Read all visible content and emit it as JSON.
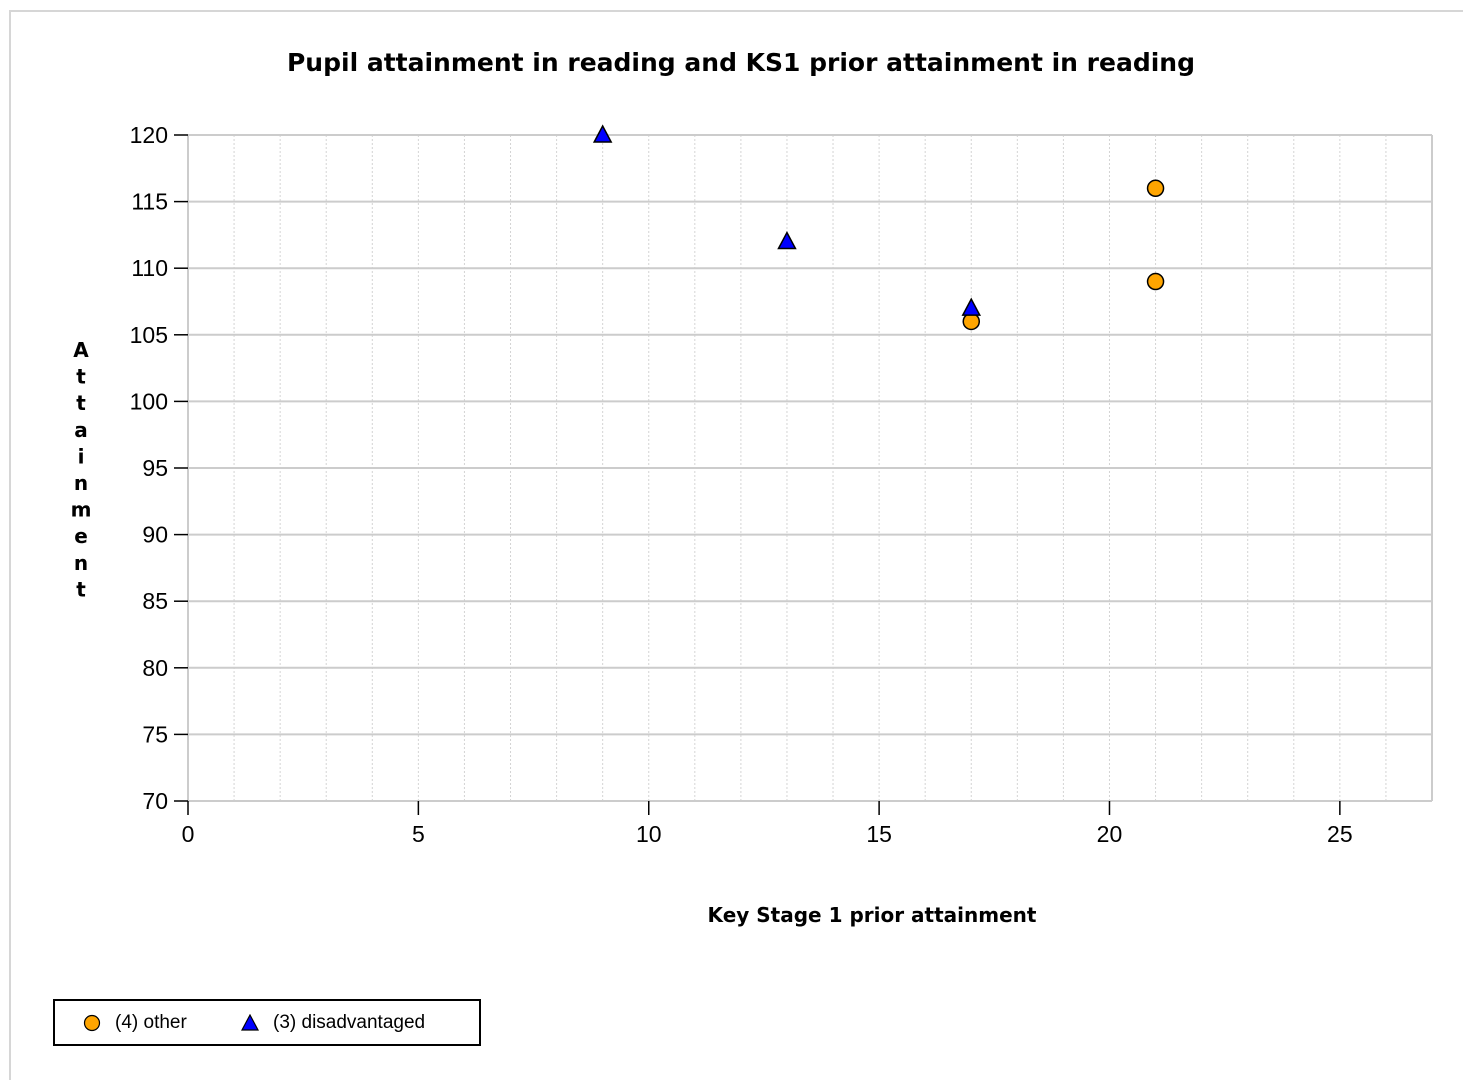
{
  "chart_data": {
    "type": "scatter",
    "title": "Pupil attainment in reading and KS1 prior attainment in reading",
    "xlabel": "Key Stage 1 prior attainment",
    "ylabel": "Attainment",
    "xlim": [
      0,
      27
    ],
    "ylim": [
      70,
      120
    ],
    "x_ticks": [
      "0",
      "5",
      "10",
      "15",
      "20",
      "25"
    ],
    "y_ticks": [
      "120",
      "115",
      "110",
      "105",
      "100",
      "95",
      "90",
      "85",
      "80",
      "75",
      "70"
    ],
    "grid": true,
    "legend_position": "bottom-left",
    "series": [
      {
        "name": "(4) other",
        "marker": "circle",
        "color": "#FFA500",
        "points": [
          {
            "x": 21,
            "y": 116
          },
          {
            "x": 21,
            "y": 109
          },
          {
            "x": 17,
            "y": 106
          }
        ]
      },
      {
        "name": "(3) disadvantaged",
        "marker": "triangle",
        "color": "#0000FF",
        "points": [
          {
            "x": 9,
            "y": 120
          },
          {
            "x": 13,
            "y": 112
          },
          {
            "x": 17,
            "y": 107
          }
        ]
      }
    ]
  }
}
